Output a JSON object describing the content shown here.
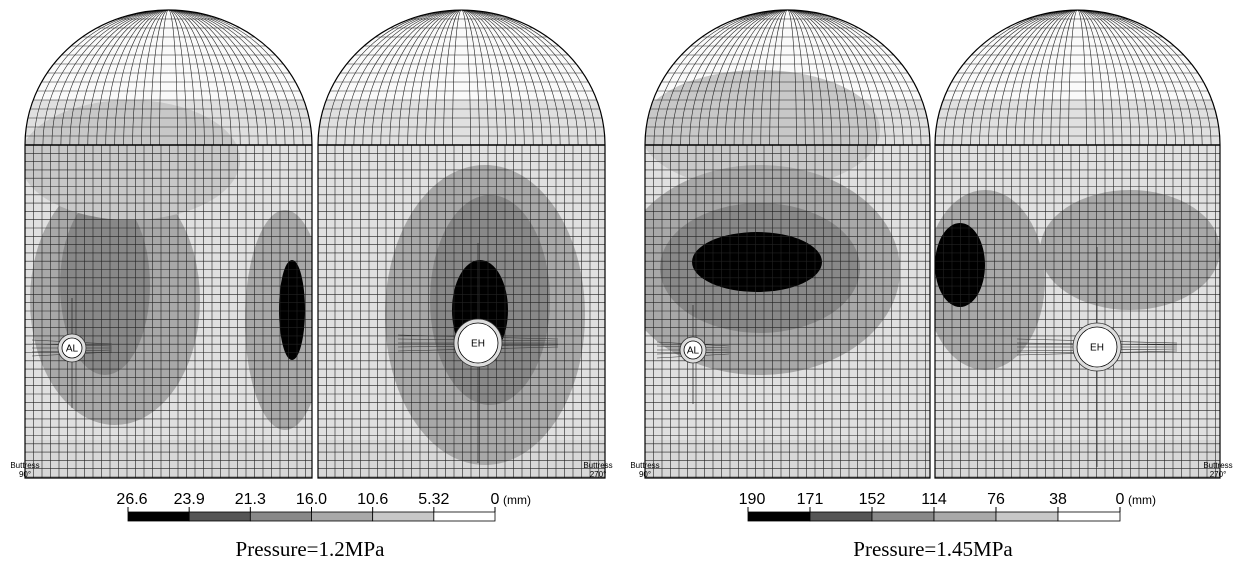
{
  "panels": [
    {
      "holes": [
        "AL",
        "EH"
      ],
      "left_label": {
        "line1": "Buttress",
        "line2": "90°"
      },
      "right_label": {
        "line1": "Buttress",
        "line2": "270°"
      },
      "legend": {
        "values": [
          "26.6",
          "23.9",
          "21.3",
          "16.0",
          "10.6",
          "5.32",
          "0"
        ],
        "unit": "(mm)"
      },
      "caption": "Pressure=1.2MPa"
    },
    {
      "holes": [
        "AL",
        "EH"
      ],
      "left_label": {
        "line1": "Buttress",
        "line2": "90°"
      },
      "right_label": {
        "line1": "Buttress",
        "line2": "270°"
      },
      "legend": {
        "values": [
          "190",
          "171",
          "152",
          "114",
          "76",
          "38",
          "0"
        ],
        "unit": "(mm)"
      },
      "caption": "Pressure=1.45MPa"
    }
  ]
}
